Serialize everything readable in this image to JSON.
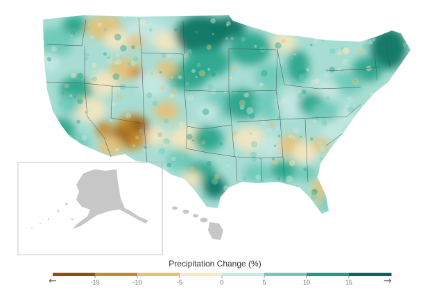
{
  "legend": {
    "title": "Precipitation Change (%)",
    "left_arrow": "←",
    "right_arrow": "→",
    "ticks": [
      "-15",
      "-10",
      "-5",
      "0",
      "5",
      "10",
      "15"
    ],
    "colors": [
      "#8c510a",
      "#c58a2c",
      "#e6c170",
      "#f6e8c3",
      "#c7eae5",
      "#6fcab9",
      "#1d9c84",
      "#00695a"
    ]
  },
  "map": {
    "insets": [
      "alaska",
      "hawaii"
    ],
    "land_color": "#c7c7c7",
    "border_color": "#555555"
  }
}
